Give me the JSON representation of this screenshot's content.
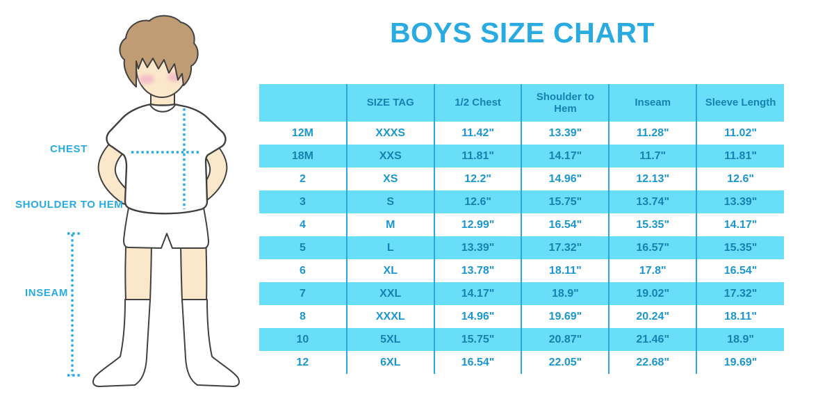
{
  "title": "BOYS SIZE CHART",
  "colors": {
    "accent_blue": "#29abe2",
    "stripe_cyan": "#68def8",
    "grid_line": "#2aa7db",
    "header_text": "#1583b0",
    "body_text": "#1b96ce",
    "skin": "#fbe8ca",
    "hair": "#bf9c73",
    "outline": "#404040",
    "blush": "#f3b9c8"
  },
  "diagram": {
    "labels": [
      {
        "id": "chest",
        "text": "CHEST"
      },
      {
        "id": "shoulder_to_hem",
        "text": "SHOULDER TO HEM"
      },
      {
        "id": "inseam",
        "text": "INSEAM"
      }
    ]
  },
  "chart_data": {
    "type": "table",
    "title": "BOYS SIZE CHART",
    "columns": [
      "",
      "SIZE TAG",
      "1/2 Chest",
      "Shoulder to Hem",
      "Inseam",
      "Sleeve Length"
    ],
    "rows": [
      [
        "12M",
        "XXXS",
        "11.42\"",
        "13.39\"",
        "11.28\"",
        "11.02\""
      ],
      [
        "18M",
        "XXS",
        "11.81\"",
        "14.17\"",
        "11.7\"",
        "11.81\""
      ],
      [
        "2",
        "XS",
        "12.2\"",
        "14.96\"",
        "12.13\"",
        "12.6\""
      ],
      [
        "3",
        "S",
        "12.6\"",
        "15.75\"",
        "13.74\"",
        "13.39\""
      ],
      [
        "4",
        "M",
        "12.99\"",
        "16.54\"",
        "15.35\"",
        "14.17\""
      ],
      [
        "5",
        "L",
        "13.39\"",
        "17.32\"",
        "16.57\"",
        "15.35\""
      ],
      [
        "6",
        "XL",
        "13.78\"",
        "18.11\"",
        "17.8\"",
        "16.54\""
      ],
      [
        "7",
        "XXL",
        "14.17\"",
        "18.9\"",
        "19.02\"",
        "17.32\""
      ],
      [
        "8",
        "XXXL",
        "14.96\"",
        "19.69\"",
        "20.24\"",
        "18.11\""
      ],
      [
        "10",
        "5XL",
        "15.75\"",
        "20.87\"",
        "21.46\"",
        "18.9\""
      ],
      [
        "12",
        "6XL",
        "16.54\"",
        "22.05\"",
        "22.68\"",
        "19.69\""
      ]
    ],
    "stripe_pattern": "header and every second data row filled cyan, others white",
    "units": "inches"
  }
}
